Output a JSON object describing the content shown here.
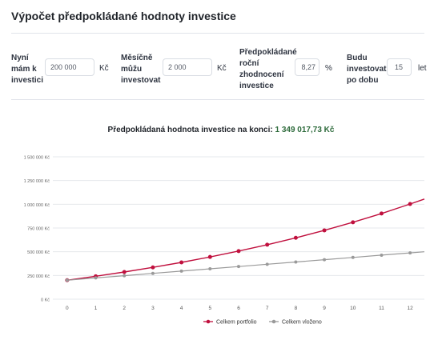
{
  "title": "Výpočet předpokládané hodnoty investice",
  "fields": [
    {
      "label_lines": [
        "Nyní",
        "mám k",
        "investici"
      ],
      "value": "200 000",
      "unit": "Kč"
    },
    {
      "label_lines": [
        "Měsíčně",
        "můžu",
        "investovat"
      ],
      "value": "2 000",
      "unit": "Kč"
    },
    {
      "label_lines": [
        "Předpokládané",
        "roční",
        "zhodnocení",
        "investice"
      ],
      "value": "8,27",
      "unit": "%"
    },
    {
      "label_lines": [
        "Budu",
        "investovat",
        "po dobu"
      ],
      "value": "15",
      "unit": "let"
    }
  ],
  "result": {
    "label": "Předpokládaná hodnota investice na konci:",
    "value": "1 349 017,73 Kč"
  },
  "chart_data": {
    "type": "line",
    "x": [
      0,
      1,
      2,
      3,
      4,
      5,
      6,
      7,
      8,
      9,
      10,
      11,
      12,
      12.5
    ],
    "x_tick_labels": [
      "0",
      "1",
      "2",
      "3",
      "4",
      "5",
      "6",
      "7",
      "8",
      "9",
      "10",
      "11",
      "12"
    ],
    "y_tick_labels": [
      "0 Kč",
      "250 000 Kč",
      "500 000 Kč",
      "750 000 Kč",
      "1 000 000 Kč",
      "1 250 000 Kč",
      "1 500 000 Kč"
    ],
    "ylim": [
      0,
      1500000
    ],
    "xlim": [
      -0.5,
      12.5
    ],
    "series": [
      {
        "name": "Celkem portfolio",
        "color": "#c0103e",
        "values": [
          200000,
          241513,
          286477,
          335178,
          387927,
          445060,
          506941,
          573965,
          646559,
          725186,
          810348,
          902586,
          1002491,
          1055000
        ]
      },
      {
        "name": "Celkem vloženo",
        "color": "#9a9a9a",
        "values": [
          200000,
          224000,
          248000,
          272000,
          296000,
          320000,
          344000,
          368000,
          392000,
          416000,
          440000,
          464000,
          488000,
          500000
        ]
      }
    ],
    "legend_position": "bottom-center",
    "grid": "horizontal"
  }
}
